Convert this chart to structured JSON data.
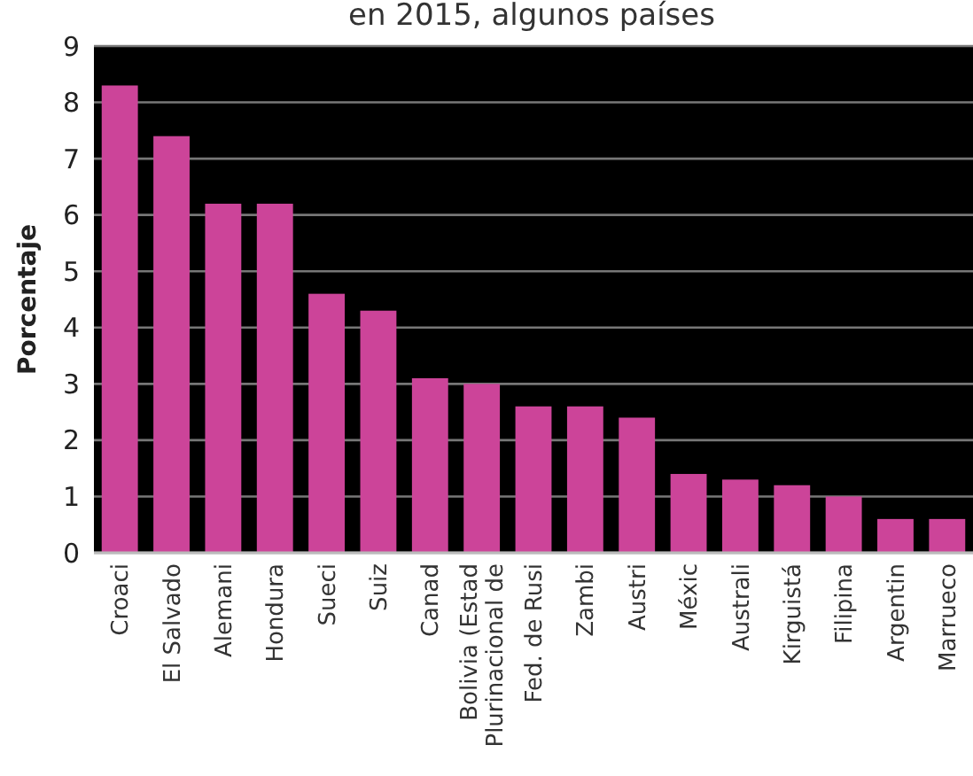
{
  "chart_data": {
    "type": "bar",
    "title": "en 2015, algunos países",
    "ylabel": "Porcentaje",
    "categories": [
      "Croaci",
      "El Salvado",
      "Alemani",
      "Hondura",
      "Sueci",
      "Suiz",
      "Canad",
      "Bolivia (Estad\nPlurinacional de",
      "Fed. de Rusi",
      "Zambi",
      "Austri",
      "Méxic",
      "Australi",
      "Kirguistá",
      "Filipina",
      "Argentin",
      "Marrueco"
    ],
    "values": [
      8.3,
      7.4,
      6.2,
      6.2,
      4.6,
      4.3,
      3.1,
      3.0,
      2.6,
      2.6,
      2.4,
      1.4,
      1.3,
      1.2,
      1.0,
      0.6,
      0.6
    ],
    "color": "#cc4499",
    "ylim": [
      0,
      9
    ],
    "yticks": [
      0,
      1,
      2,
      3,
      4,
      5,
      6,
      7,
      8,
      9
    ],
    "grid": "y"
  }
}
